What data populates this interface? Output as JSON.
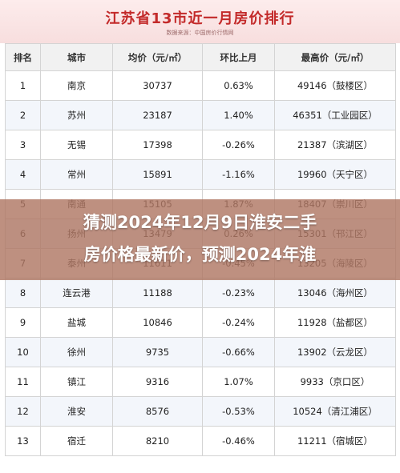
{
  "header": {
    "title": "江苏省13市近一月房价排行",
    "source": "数据来源：中国房价行情网"
  },
  "columns": [
    "排名",
    "城市",
    "均价（元/㎡）",
    "环比上月",
    "最高价（元/㎡）"
  ],
  "rows": [
    {
      "rank": "1",
      "city": "南京",
      "avg": "30737",
      "mom": "0.63%",
      "trend": "up",
      "max": "49146（鼓楼区）"
    },
    {
      "rank": "2",
      "city": "苏州",
      "avg": "23187",
      "mom": "1.40%",
      "trend": "up",
      "max": "46351（工业园区）"
    },
    {
      "rank": "3",
      "city": "无锡",
      "avg": "17398",
      "mom": "-0.26%",
      "trend": "down",
      "max": "21387（滨湖区）"
    },
    {
      "rank": "4",
      "city": "常州",
      "avg": "15891",
      "mom": "-1.16%",
      "trend": "down",
      "max": "19960（天宁区）"
    },
    {
      "rank": "5",
      "city": "南通",
      "avg": "15105",
      "mom": "1.87%",
      "trend": "up",
      "max": "18407（崇川区）"
    },
    {
      "rank": "6",
      "city": "扬州",
      "avg": "13479",
      "mom": "0.26%",
      "trend": "up",
      "max": "15301（邗江区）"
    },
    {
      "rank": "7",
      "city": "泰州",
      "avg": "11611",
      "mom": "-0.45%",
      "trend": "down",
      "max": "13205（海陵区）"
    },
    {
      "rank": "8",
      "city": "连云港",
      "avg": "11188",
      "mom": "-0.23%",
      "trend": "down",
      "max": "13046（海州区）"
    },
    {
      "rank": "9",
      "city": "盐城",
      "avg": "10846",
      "mom": "-0.24%",
      "trend": "down",
      "max": "11928（盐都区）"
    },
    {
      "rank": "10",
      "city": "徐州",
      "avg": "9735",
      "mom": "-0.66%",
      "trend": "down",
      "max": "13902（云龙区）"
    },
    {
      "rank": "11",
      "city": "镇江",
      "avg": "9316",
      "mom": "1.07%",
      "trend": "up",
      "max": "9933（京口区）"
    },
    {
      "rank": "12",
      "city": "淮安",
      "avg": "8576",
      "mom": "-0.53%",
      "trend": "down",
      "max": "10524（清江浦区）"
    },
    {
      "rank": "13",
      "city": "宿迁",
      "avg": "8210",
      "mom": "-0.46%",
      "trend": "down",
      "max": "11211（宿城区）"
    }
  ],
  "overlay": {
    "line1": "猜测2024年12月9日淮安二手",
    "line2": "房价格最新价，预测2024年淮"
  },
  "colors": {
    "up": "#d12b2b",
    "down": "#3f7ac4",
    "title": "#c32a2a",
    "overlay": "#b07864"
  }
}
